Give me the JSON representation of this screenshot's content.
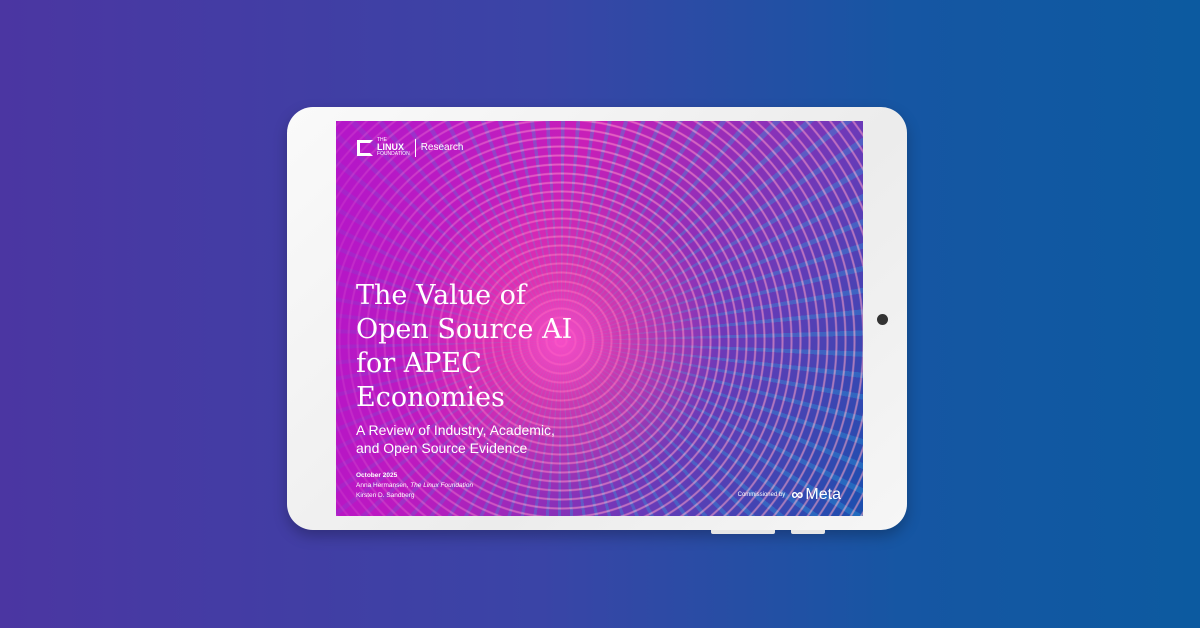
{
  "logo": {
    "the": "THE",
    "linux": "LINUX",
    "foundation": "FOUNDATION",
    "research": "Research"
  },
  "cover": {
    "title_lines": [
      "The Value of",
      "Open Source AI",
      "for APEC",
      "Economies"
    ],
    "subtitle_lines": [
      "A Review of Industry, Academic,",
      "and Open Source Evidence"
    ],
    "date": "October 2025",
    "author1": "Anna Hermansen, ",
    "author1_org": "The Linux Foundation",
    "author2": "Kirsten D. Sandberg",
    "commissioned_by": "Commissioned by",
    "sponsor": "Meta"
  }
}
